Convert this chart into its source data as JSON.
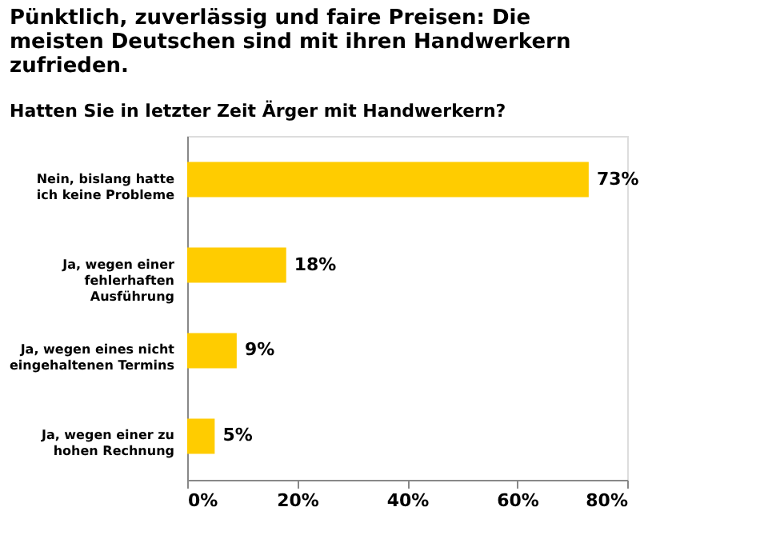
{
  "chart_data": {
    "type": "bar",
    "orientation": "horizontal",
    "title": "Pünktlich, zuverlässig und faire Preisen: Die meisten Deutschen sind mit ihren Handwerkern zufrieden.",
    "subtitle": "Hatten Sie in letzter Zeit Ärger mit Handwerkern?",
    "categories": [
      "Nein, bislang hatte ich keine Probleme",
      "Ja, wegen einer fehlerhaften Ausführung",
      "Ja, wegen eines nicht eingehaltenen Termins",
      "Ja, wegen einer zu hohen Rechnung"
    ],
    "values": [
      73,
      18,
      9,
      5
    ],
    "value_labels": [
      "73%",
      "18%",
      "9%",
      "5%"
    ],
    "color": "#ffcc00",
    "xlim": [
      0,
      80
    ],
    "xticks": [
      {
        "value": 0,
        "label": "0%"
      },
      {
        "value": 20,
        "label": "20%"
      },
      {
        "value": 40,
        "label": "40%"
      },
      {
        "value": 60,
        "label": "60%"
      },
      {
        "value": 80,
        "label": "80%"
      }
    ],
    "grid": false
  }
}
